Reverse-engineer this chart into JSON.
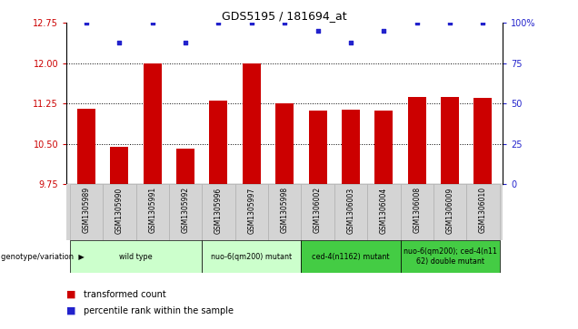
{
  "title": "GDS5195 / 181694_at",
  "samples": [
    "GSM1305989",
    "GSM1305990",
    "GSM1305991",
    "GSM1305992",
    "GSM1305996",
    "GSM1305997",
    "GSM1305998",
    "GSM1306002",
    "GSM1306003",
    "GSM1306004",
    "GSM1306008",
    "GSM1306009",
    "GSM1306010"
  ],
  "transformed_count": [
    11.15,
    10.45,
    12.0,
    10.42,
    11.31,
    11.99,
    11.26,
    11.12,
    11.14,
    11.12,
    11.38,
    11.38,
    11.35
  ],
  "percentile": [
    100,
    88,
    100,
    88,
    100,
    100,
    100,
    95,
    88,
    95,
    100,
    100,
    100
  ],
  "ylim_left": [
    9.75,
    12.75
  ],
  "ylim_right": [
    0,
    100
  ],
  "yticks_left": [
    9.75,
    10.5,
    11.25,
    12.0,
    12.75
  ],
  "yticks_right": [
    0,
    25,
    50,
    75,
    100
  ],
  "bar_color": "#cc0000",
  "dot_color": "#2222cc",
  "groups": [
    {
      "label": "wild type",
      "start": 0,
      "end": 3,
      "color": "#ccffcc"
    },
    {
      "label": "nuo-6(qm200) mutant",
      "start": 4,
      "end": 6,
      "color": "#ccffcc"
    },
    {
      "label": "ced-4(n1162) mutant",
      "start": 7,
      "end": 9,
      "color": "#44cc44"
    },
    {
      "label": "nuo-6(qm200); ced-4(n11\n62) double mutant",
      "start": 10,
      "end": 12,
      "color": "#44cc44"
    }
  ],
  "genotype_label": "genotype/variation",
  "legend_transformed": "transformed count",
  "legend_percentile": "percentile rank within the sample"
}
